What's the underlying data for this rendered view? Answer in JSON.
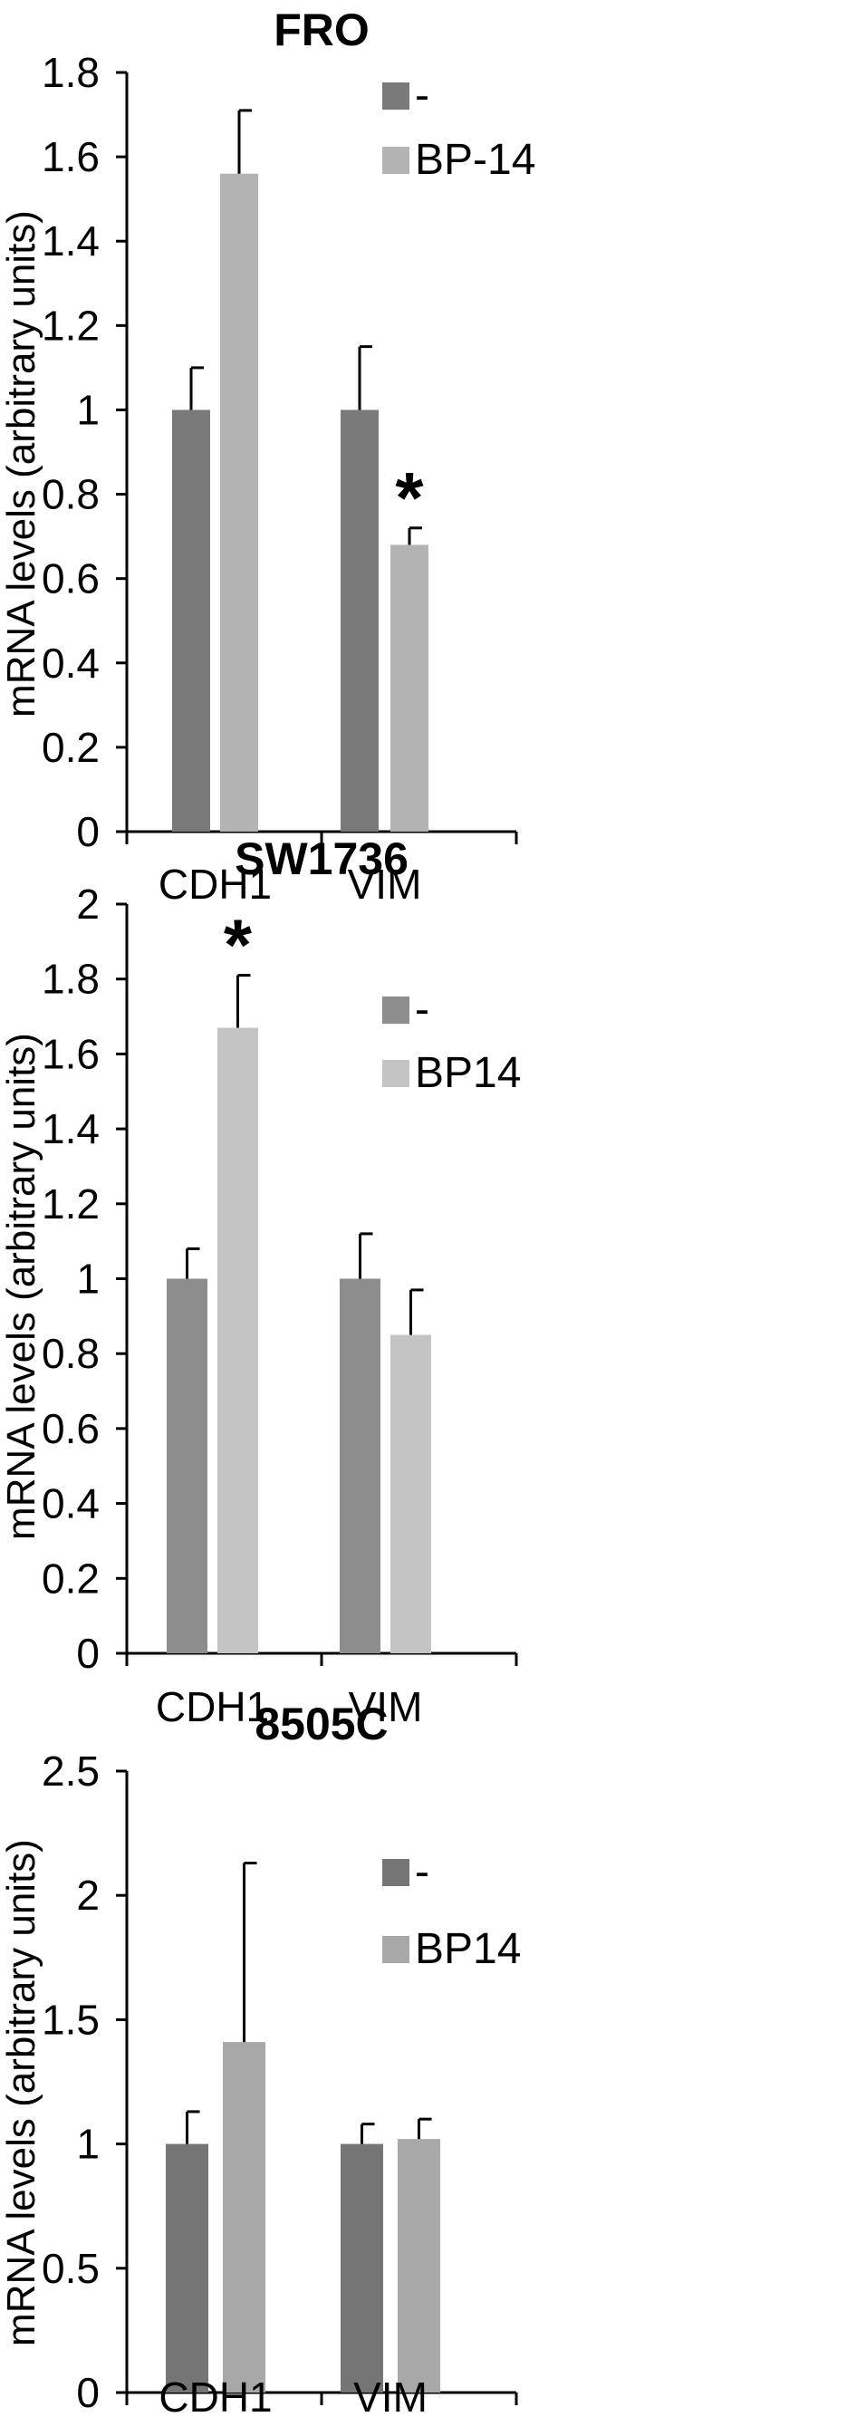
{
  "chart_data": [
    {
      "type": "bar",
      "title": "FRO",
      "ylabel": "mRNA levels (arbitrary units)",
      "xlabel": "",
      "categories": [
        "CDH1",
        "VIM"
      ],
      "ylim": [
        0,
        1.8
      ],
      "yticks": [
        "0",
        "0.2",
        "0.4",
        "0.6",
        "0.8",
        "1",
        "1.2",
        "1.4",
        "1.6",
        "1.8"
      ],
      "series": [
        {
          "name": "-",
          "values": [
            1.0,
            1.0
          ],
          "errors": [
            0.1,
            0.15
          ],
          "color": "#7a7a7a"
        },
        {
          "name": "BP-14",
          "values": [
            1.56,
            0.68
          ],
          "errors": [
            0.15,
            0.04
          ],
          "color": "#b3b3b3"
        }
      ],
      "annotations": [
        {
          "text": "*",
          "category": "VIM",
          "series": 1
        }
      ],
      "legend_position": "top-right",
      "grid": false
    },
    {
      "type": "bar",
      "title": "SW1736",
      "ylabel": "mRNA levels (arbitrary units)",
      "xlabel": "",
      "categories": [
        "CDH1",
        "VIM"
      ],
      "ylim": [
        0,
        2
      ],
      "yticks": [
        "0",
        "0.2",
        "0.4",
        "0.6",
        "0.8",
        "1",
        "1.2",
        "1.4",
        "1.6",
        "1.8",
        "2"
      ],
      "series": [
        {
          "name": "-",
          "values": [
            1.0,
            1.0
          ],
          "errors": [
            0.08,
            0.12
          ],
          "color": "#8c8c8c"
        },
        {
          "name": "BP14",
          "values": [
            1.67,
            0.85
          ],
          "errors": [
            0.14,
            0.12
          ],
          "color": "#c4c4c4"
        }
      ],
      "annotations": [
        {
          "text": "*",
          "category": "CDH1",
          "series": 1
        }
      ],
      "legend_position": "top-right",
      "grid": false
    },
    {
      "type": "bar",
      "title": "8505C",
      "ylabel": "mRNA levels (arbitrary units)",
      "xlabel": "",
      "categories": [
        "CDH1",
        "VIM"
      ],
      "ylim": [
        0,
        2.5
      ],
      "yticks": [
        "0",
        "0.5",
        "1",
        "1.5",
        "2",
        "2.5"
      ],
      "series": [
        {
          "name": "-",
          "values": [
            1.0,
            1.0
          ],
          "errors": [
            0.13,
            0.08
          ],
          "color": "#757575"
        },
        {
          "name": "BP14",
          "values": [
            1.41,
            1.02
          ],
          "errors": [
            0.72,
            0.08
          ],
          "color": "#a8a8a8"
        }
      ],
      "annotations": [],
      "legend_position": "top-right",
      "grid": false
    }
  ]
}
